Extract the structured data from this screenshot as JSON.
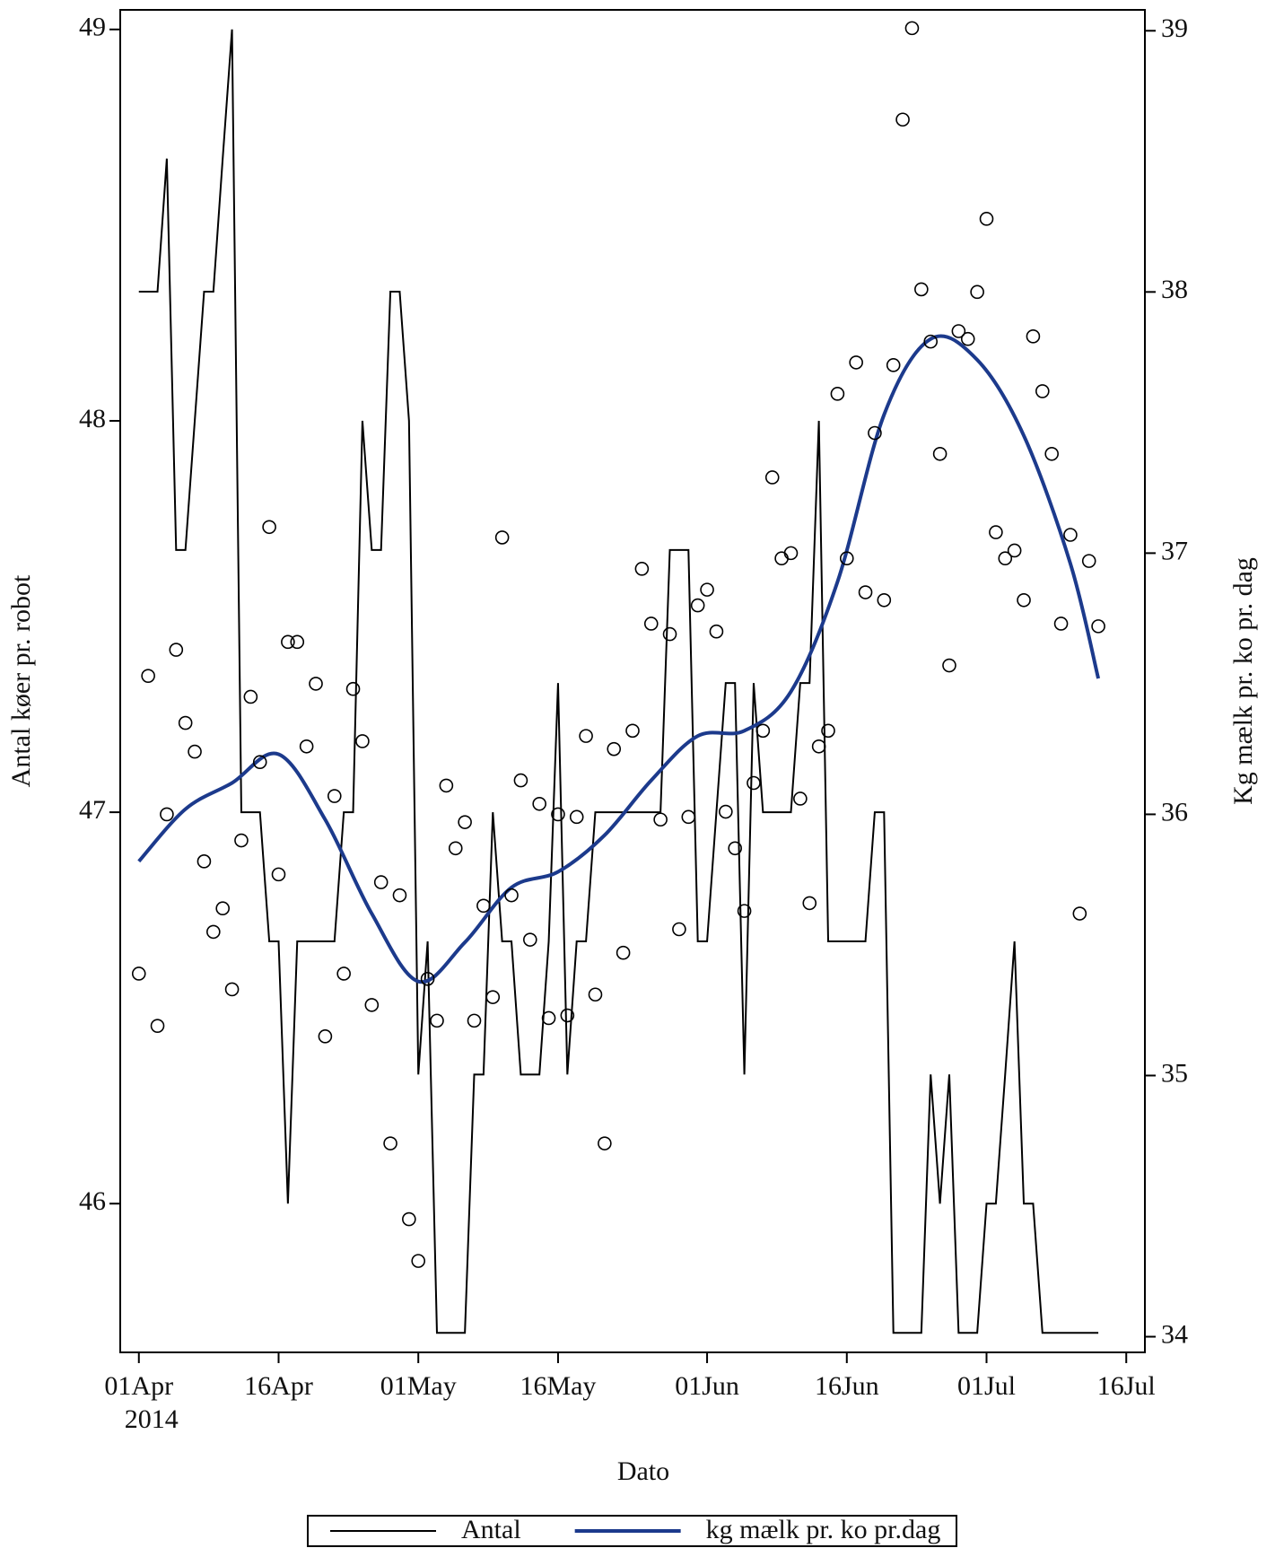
{
  "chart_data": {
    "type": "line",
    "x_label": "Dato",
    "y_label": "Antal køer pr. robot",
    "y2_label": "Kg mælk pr. ko pr. dag",
    "x_year_label": "2014",
    "xlim": [
      "2014-03-30",
      "2014-07-18"
    ],
    "xticks": [
      {
        "value": "2014-04-01",
        "label": "01Apr"
      },
      {
        "value": "2014-04-16",
        "label": "16Apr"
      },
      {
        "value": "2014-05-01",
        "label": "01May"
      },
      {
        "value": "2014-05-16",
        "label": "16May"
      },
      {
        "value": "2014-06-01",
        "label": "01Jun"
      },
      {
        "value": "2014-06-16",
        "label": "16Jun"
      },
      {
        "value": "2014-07-01",
        "label": "01Jul"
      },
      {
        "value": "2014-07-16",
        "label": "16Jul"
      }
    ],
    "ylim": [
      45.62,
      49.05
    ],
    "yticks": [
      46,
      47,
      48,
      49
    ],
    "y2lim": [
      33.94,
      39.08
    ],
    "y2ticks": [
      34,
      35,
      36,
      37,
      38,
      39
    ],
    "x": [
      "2014-04-01",
      "2014-04-02",
      "2014-04-03",
      "2014-04-04",
      "2014-04-05",
      "2014-04-06",
      "2014-04-07",
      "2014-04-08",
      "2014-04-09",
      "2014-04-10",
      "2014-04-11",
      "2014-04-12",
      "2014-04-13",
      "2014-04-14",
      "2014-04-15",
      "2014-04-16",
      "2014-04-17",
      "2014-04-18",
      "2014-04-19",
      "2014-04-20",
      "2014-04-21",
      "2014-04-22",
      "2014-04-23",
      "2014-04-24",
      "2014-04-25",
      "2014-04-26",
      "2014-04-27",
      "2014-04-28",
      "2014-04-29",
      "2014-04-30",
      "2014-05-01",
      "2014-05-02",
      "2014-05-03",
      "2014-05-04",
      "2014-05-05",
      "2014-05-06",
      "2014-05-07",
      "2014-05-08",
      "2014-05-09",
      "2014-05-10",
      "2014-05-11",
      "2014-05-12",
      "2014-05-13",
      "2014-05-14",
      "2014-05-15",
      "2014-05-16",
      "2014-05-17",
      "2014-05-18",
      "2014-05-19",
      "2014-05-20",
      "2014-05-21",
      "2014-05-22",
      "2014-05-23",
      "2014-05-24",
      "2014-05-25",
      "2014-05-26",
      "2014-05-27",
      "2014-05-28",
      "2014-05-29",
      "2014-05-30",
      "2014-05-31",
      "2014-06-01",
      "2014-06-02",
      "2014-06-03",
      "2014-06-04",
      "2014-06-05",
      "2014-06-06",
      "2014-06-07",
      "2014-06-08",
      "2014-06-09",
      "2014-06-10",
      "2014-06-11",
      "2014-06-12",
      "2014-06-13",
      "2014-06-14",
      "2014-06-15",
      "2014-06-16",
      "2014-06-17",
      "2014-06-18",
      "2014-06-19",
      "2014-06-20",
      "2014-06-21",
      "2014-06-22",
      "2014-06-23",
      "2014-06-24",
      "2014-06-25",
      "2014-06-26",
      "2014-06-27",
      "2014-06-28",
      "2014-06-29",
      "2014-06-30",
      "2014-07-01",
      "2014-07-02",
      "2014-07-03",
      "2014-07-04",
      "2014-07-05",
      "2014-07-06",
      "2014-07-07",
      "2014-07-08",
      "2014-07-09",
      "2014-07-10",
      "2014-07-11",
      "2014-07-12",
      "2014-07-13"
    ],
    "series": [
      {
        "name": "Antal",
        "color": "#000000",
        "values": [
          48.33,
          48.33,
          48.33,
          48.67,
          47.67,
          47.67,
          48,
          48.33,
          48.33,
          48.67,
          49,
          47,
          47,
          47,
          46.67,
          46.67,
          46,
          46.67,
          46.67,
          46.67,
          46.67,
          46.67,
          47,
          47,
          48,
          47.67,
          47.67,
          48.33,
          48.33,
          48,
          46.33,
          46.67,
          45.67,
          45.67,
          45.67,
          45.67,
          46.33,
          46.33,
          47,
          46.67,
          46.67,
          46.33,
          46.33,
          46.33,
          46.67,
          47.33,
          46.33,
          46.67,
          46.67,
          47,
          47,
          47,
          47,
          47,
          47,
          47,
          47,
          47.67,
          47.67,
          47.67,
          46.67,
          46.67,
          47,
          47.33,
          47.33,
          46.33,
          47.33,
          47,
          47,
          47,
          47,
          47.33,
          47.33,
          48,
          46.67,
          46.67,
          46.67,
          46.67,
          46.67,
          47,
          47,
          45.67,
          45.67,
          45.67,
          45.67,
          46.33,
          46,
          46.33,
          45.67,
          45.67,
          45.67,
          46,
          46,
          46.33,
          46.67,
          46,
          46,
          45.67,
          45.67,
          45.67,
          45.67,
          45.67,
          45.67,
          45.67
        ]
      },
      {
        "name": "kg mælk pr. ko pr.dag",
        "color": "#1c3a8c",
        "axis": "y2",
        "smooth": true,
        "x": [
          "2014-04-01",
          "2014-04-06",
          "2014-04-11",
          "2014-04-16",
          "2014-04-21",
          "2014-04-26",
          "2014-05-01",
          "2014-05-06",
          "2014-05-11",
          "2014-05-16",
          "2014-05-21",
          "2014-05-26",
          "2014-05-31",
          "2014-06-05",
          "2014-06-10",
          "2014-06-15",
          "2014-06-20",
          "2014-06-25",
          "2014-06-30",
          "2014-07-05",
          "2014-07-10",
          "2014-07-13"
        ],
        "values": [
          35.82,
          36.02,
          36.12,
          36.23,
          35.98,
          35.62,
          35.36,
          35.51,
          35.72,
          35.78,
          35.92,
          36.13,
          36.3,
          36.32,
          36.47,
          36.89,
          37.53,
          37.82,
          37.74,
          37.45,
          36.96,
          36.52
        ]
      },
      {
        "marker": "circle",
        "color": "#000000",
        "axis": "y2",
        "values": [
          35.39,
          36.53,
          35.19,
          36.0,
          36.63,
          36.35,
          36.24,
          35.82,
          35.55,
          35.64,
          35.33,
          35.9,
          36.45,
          36.2,
          37.1,
          35.77,
          36.66,
          36.66,
          36.26,
          36.5,
          35.15,
          36.07,
          35.39,
          36.48,
          36.28,
          35.27,
          35.74,
          34.74,
          35.69,
          34.45,
          34.29,
          35.37,
          35.21,
          36.11,
          35.87,
          35.97,
          35.21,
          35.65,
          35.3,
          37.06,
          35.69,
          36.13,
          35.52,
          36.04,
          35.22,
          36.0,
          35.23,
          35.99,
          36.3,
          35.31,
          34.74,
          36.25,
          35.47,
          36.32,
          36.94,
          36.73,
          35.98,
          36.69,
          35.56,
          35.99,
          36.8,
          36.86,
          36.7,
          36.01,
          35.87,
          35.63,
          36.12,
          36.32,
          37.29,
          36.98,
          37.0,
          36.06,
          35.66,
          36.26,
          36.32,
          37.61,
          36.98,
          37.73,
          36.85,
          37.46,
          36.82,
          37.72,
          38.66,
          39.01,
          38.01,
          37.81,
          37.38,
          36.57,
          37.85,
          37.82,
          38.0,
          38.28,
          37.08,
          36.98,
          37.01,
          36.82,
          37.83,
          37.62,
          37.38,
          36.73,
          37.07,
          35.62,
          36.97,
          36.72
        ]
      }
    ]
  }
}
